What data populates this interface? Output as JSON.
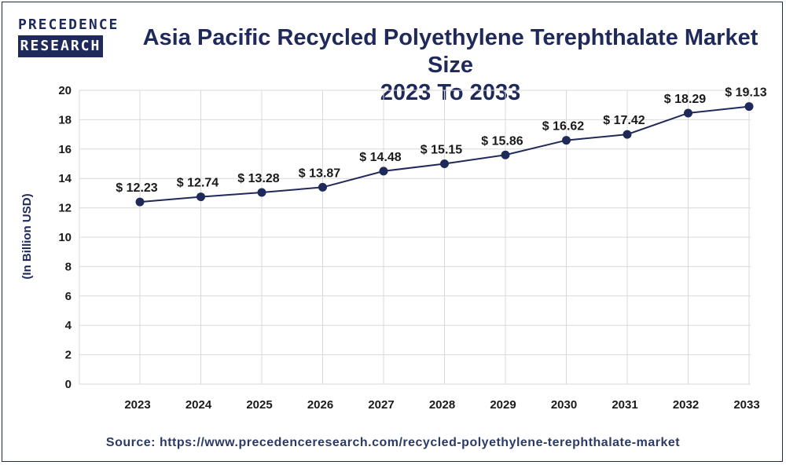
{
  "logo": {
    "line1": "PRECEDENCE",
    "line2": "RESEARCH"
  },
  "title_line1": "Asia Pacific Recycled Polyethylene Terephthalate Market Size",
  "title_line2": "2023 To 2033",
  "source_label": "Source:",
  "source_url": "https://www.precedenceresearch.com/recycled-polyethylene-terephthalate-market",
  "chart_data": {
    "type": "line",
    "title": "Asia Pacific Recycled Polyethylene Terephthalate Market Size 2023 To 2033",
    "xlabel": "",
    "ylabel": "(In Billion USD)",
    "categories": [
      "2023",
      "2024",
      "2025",
      "2026",
      "2027",
      "2028",
      "2029",
      "2030",
      "2031",
      "2032",
      "2033"
    ],
    "values": [
      12.23,
      12.74,
      13.28,
      13.87,
      14.48,
      15.15,
      15.86,
      16.62,
      17.42,
      18.29,
      19.13
    ],
    "plotted_values": [
      12.4,
      12.75,
      13.05,
      13.4,
      14.5,
      15.0,
      15.6,
      16.6,
      17.0,
      18.45,
      18.9
    ],
    "data_labels": [
      "$ 12.23",
      "$ 12.74",
      "$ 13.28",
      "$ 13.87",
      "$ 14.48",
      "$ 15.15",
      "$ 15.86",
      "$ 16.62",
      "$ 17.42",
      "$ 18.29",
      "$ 19.13"
    ],
    "yticks": [
      "0",
      "2",
      "4",
      "6",
      "8",
      "10",
      "12",
      "14",
      "16",
      "18",
      "20"
    ],
    "ylim": [
      0,
      20
    ],
    "grid": true,
    "legend": "none",
    "colors": {
      "line": "#1f2a5a",
      "marker": "#1f2a5a",
      "grid": "#d9d9d9",
      "text": "#1a1a1a",
      "title": "#1f2a5a"
    }
  }
}
